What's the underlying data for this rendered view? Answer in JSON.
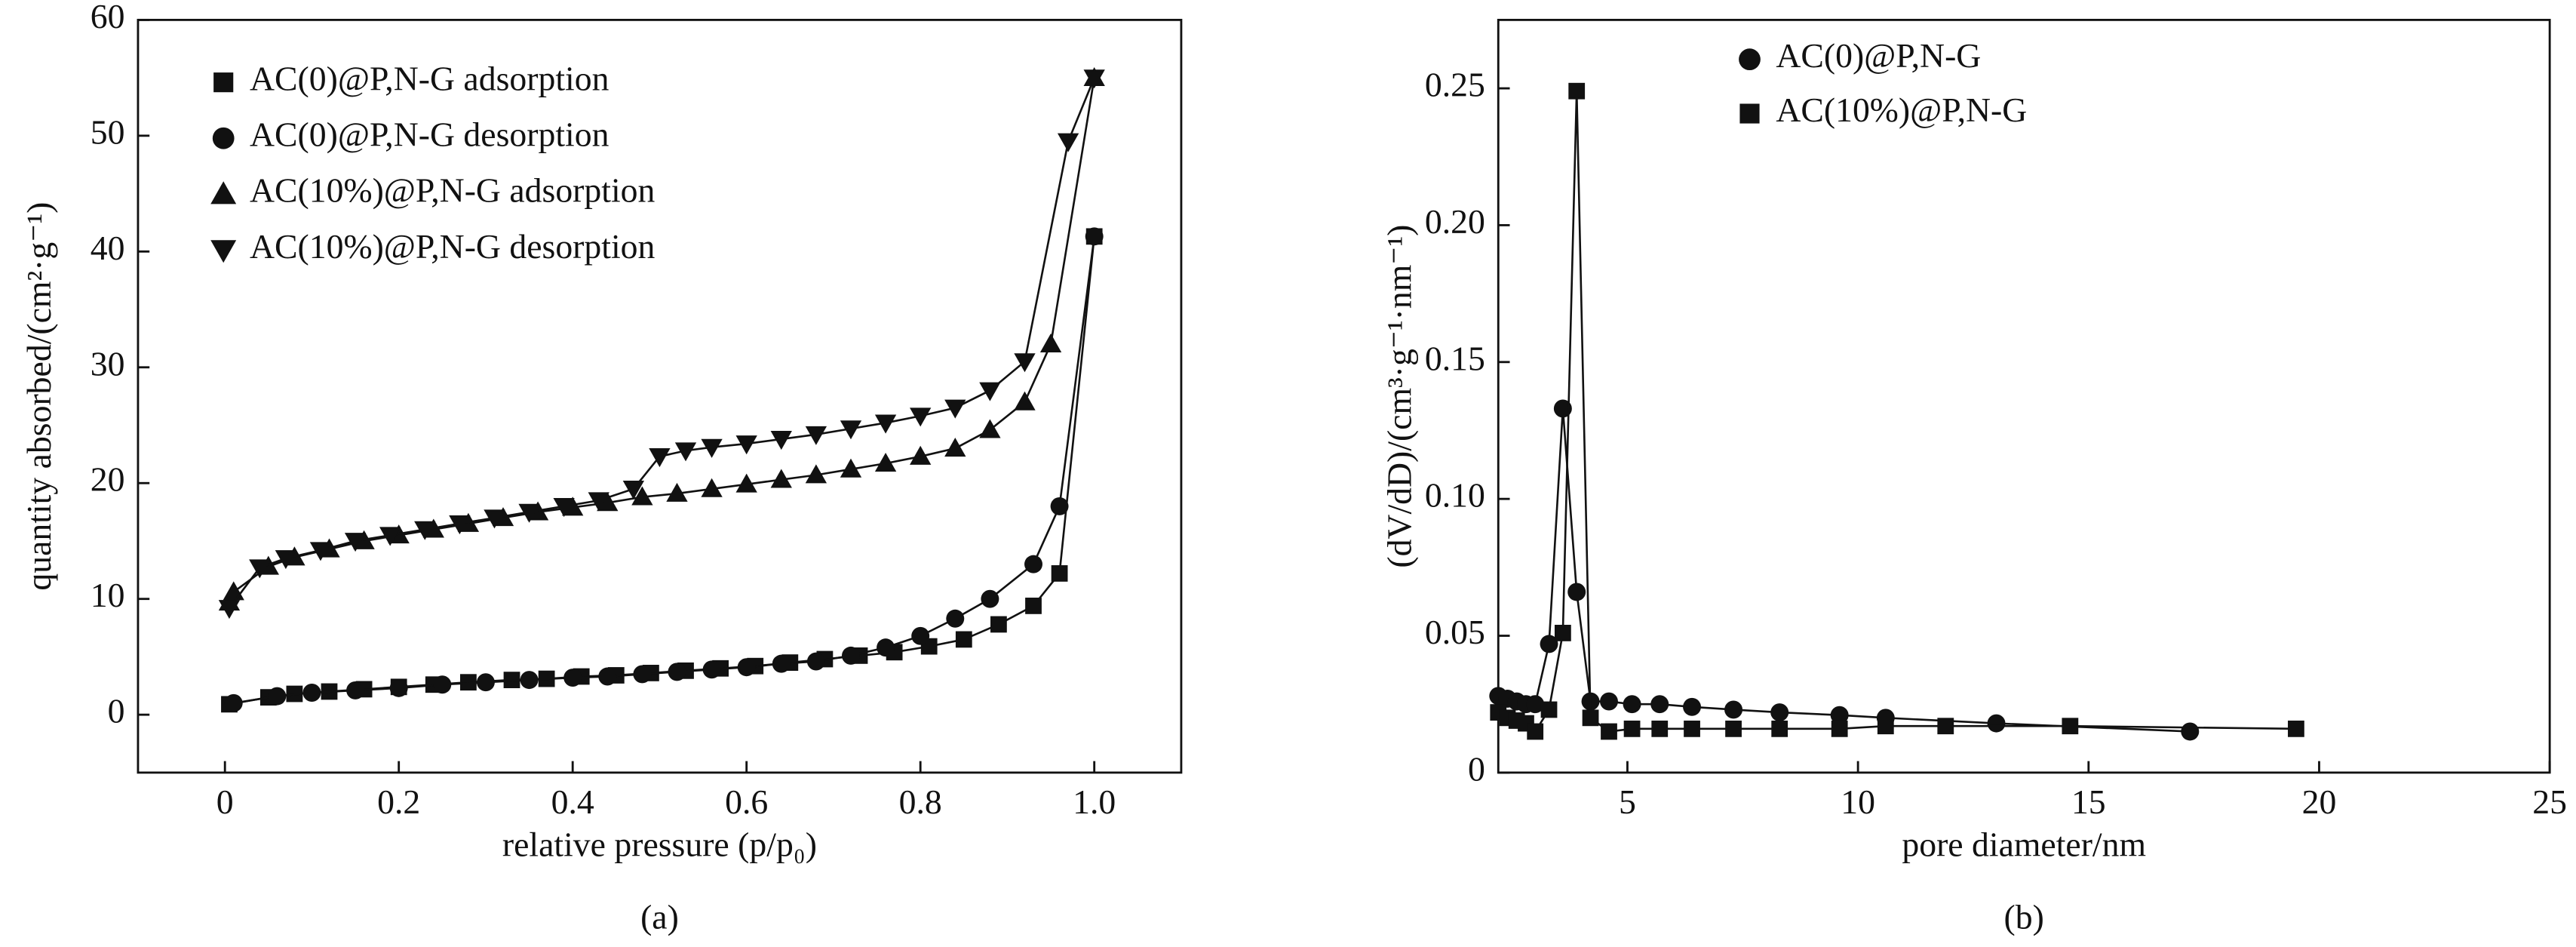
{
  "chart_data": [
    {
      "type": "line",
      "caption": "(a)",
      "x_label": "relative pressure (p/p₀)",
      "y_label": "quantity absorbed/(cm²·g⁻¹)",
      "xlim": [
        -0.1,
        1.1
      ],
      "ylim": [
        -5,
        60
      ],
      "xticks": [
        0,
        0.2,
        0.4,
        0.6,
        0.8,
        {
          "value": 1,
          "label": "1.0"
        }
      ],
      "yticks": [
        0,
        10,
        20,
        30,
        40,
        50,
        60
      ],
      "legend": "upper left",
      "series": [
        {
          "name": "AC(0)@P,N-G adsorption",
          "color": "#111111",
          "marker": "square",
          "x": [
            0.005,
            0.05,
            0.08,
            0.12,
            0.16,
            0.2,
            0.24,
            0.28,
            0.33,
            0.37,
            0.41,
            0.45,
            0.49,
            0.53,
            0.57,
            0.61,
            0.65,
            0.69,
            0.73,
            0.77,
            0.81,
            0.85,
            0.89,
            0.93,
            0.96,
            1.0
          ],
          "values": [
            0.9,
            1.5,
            1.8,
            2.0,
            2.2,
            2.4,
            2.6,
            2.8,
            3.0,
            3.1,
            3.3,
            3.4,
            3.6,
            3.8,
            4.0,
            4.2,
            4.5,
            4.8,
            5.1,
            5.4,
            5.9,
            6.5,
            7.8,
            9.4,
            12.2,
            41.3
          ]
        },
        {
          "name": "AC(0)@P,N-G desorption",
          "color": "#111111",
          "marker": "circle",
          "x": [
            0.01,
            0.06,
            0.1,
            0.15,
            0.2,
            0.25,
            0.3,
            0.35,
            0.4,
            0.44,
            0.48,
            0.52,
            0.56,
            0.6,
            0.64,
            0.68,
            0.72,
            0.76,
            0.8,
            0.84,
            0.88,
            0.93,
            0.96,
            1.0
          ],
          "values": [
            1.0,
            1.6,
            1.9,
            2.1,
            2.3,
            2.6,
            2.8,
            3.0,
            3.2,
            3.3,
            3.5,
            3.7,
            3.9,
            4.1,
            4.4,
            4.6,
            5.1,
            5.8,
            6.8,
            8.3,
            10,
            13,
            18,
            41.3
          ]
        },
        {
          "name": "AC(10%)@P,N-G adsorption",
          "color": "#111111",
          "marker": "triangle",
          "x": [
            0.005,
            0.01,
            0.05,
            0.08,
            0.12,
            0.16,
            0.2,
            0.24,
            0.28,
            0.32,
            0.36,
            0.4,
            0.44,
            0.48,
            0.52,
            0.56,
            0.6,
            0.64,
            0.68,
            0.72,
            0.76,
            0.8,
            0.84,
            0.88,
            0.92,
            0.95,
            1.0
          ],
          "values": [
            9.7,
            10.6,
            12.8,
            13.6,
            14.3,
            15,
            15.5,
            16,
            16.5,
            17,
            17.5,
            17.9,
            18.3,
            18.8,
            19.1,
            19.5,
            19.9,
            20.3,
            20.7,
            21.2,
            21.7,
            22.3,
            23,
            24.6,
            27,
            32,
            55
          ]
        },
        {
          "name": "AC(10%)@P,N-G desorption",
          "color": "#111111",
          "marker": "triangle-down",
          "x": [
            0.005,
            0.04,
            0.07,
            0.11,
            0.15,
            0.19,
            0.23,
            0.27,
            0.31,
            0.35,
            0.39,
            0.43,
            0.47,
            0.5,
            0.53,
            0.56,
            0.6,
            0.64,
            0.68,
            0.72,
            0.76,
            0.8,
            0.84,
            0.88,
            0.92,
            0.97,
            1.0
          ],
          "values": [
            9.2,
            12.7,
            13.5,
            14.2,
            15,
            15.5,
            16,
            16.5,
            17,
            17.5,
            18,
            18.5,
            19.5,
            22.3,
            22.8,
            23.1,
            23.4,
            23.8,
            24.2,
            24.7,
            25.2,
            25.8,
            26.5,
            28,
            30.5,
            49.5,
            55
          ]
        }
      ]
    },
    {
      "type": "line",
      "caption": "(b)",
      "x_label": "pore diameter/nm",
      "y_label": "(dV/dD)/(cm³·g⁻¹·nm⁻¹)",
      "xlim": [
        2.2,
        25
      ],
      "ylim": [
        0,
        0.275
      ],
      "xticks": [
        5,
        10,
        15,
        20,
        25
      ],
      "yticks": [
        0,
        0.05,
        {
          "value": 0.1,
          "label": "0.10"
        },
        0.15,
        {
          "value": 0.2,
          "label": "0.20"
        },
        0.25
      ],
      "legend": "upper center",
      "series": [
        {
          "name": "AC(0)@P,N-G",
          "color": "#111111",
          "marker": "circle",
          "x": [
            2.2,
            2.4,
            2.6,
            2.8,
            3.0,
            3.3,
            3.6,
            3.9,
            4.2,
            4.6,
            5.1,
            5.7,
            6.4,
            7.3,
            8.3,
            9.6,
            10.6,
            13.0,
            17.2
          ],
          "values": [
            0.028,
            0.027,
            0.026,
            0.025,
            0.025,
            0.047,
            0.133,
            0.066,
            0.026,
            0.026,
            0.025,
            0.025,
            0.024,
            0.023,
            0.022,
            0.021,
            0.02,
            0.018,
            0.015
          ]
        },
        {
          "name": "AC(10%)@P,N-G",
          "color": "#111111",
          "marker": "square",
          "x": [
            2.2,
            2.4,
            2.6,
            2.8,
            3.0,
            3.3,
            3.6,
            3.9,
            4.2,
            4.6,
            5.1,
            5.7,
            6.4,
            7.3,
            8.3,
            9.6,
            10.6,
            11.9,
            14.6,
            19.5
          ],
          "values": [
            0.022,
            0.02,
            0.019,
            0.018,
            0.015,
            0.023,
            0.051,
            0.249,
            0.02,
            0.015,
            0.016,
            0.016,
            0.016,
            0.016,
            0.016,
            0.016,
            0.017,
            0.017,
            0.017,
            0.016
          ]
        }
      ]
    }
  ]
}
